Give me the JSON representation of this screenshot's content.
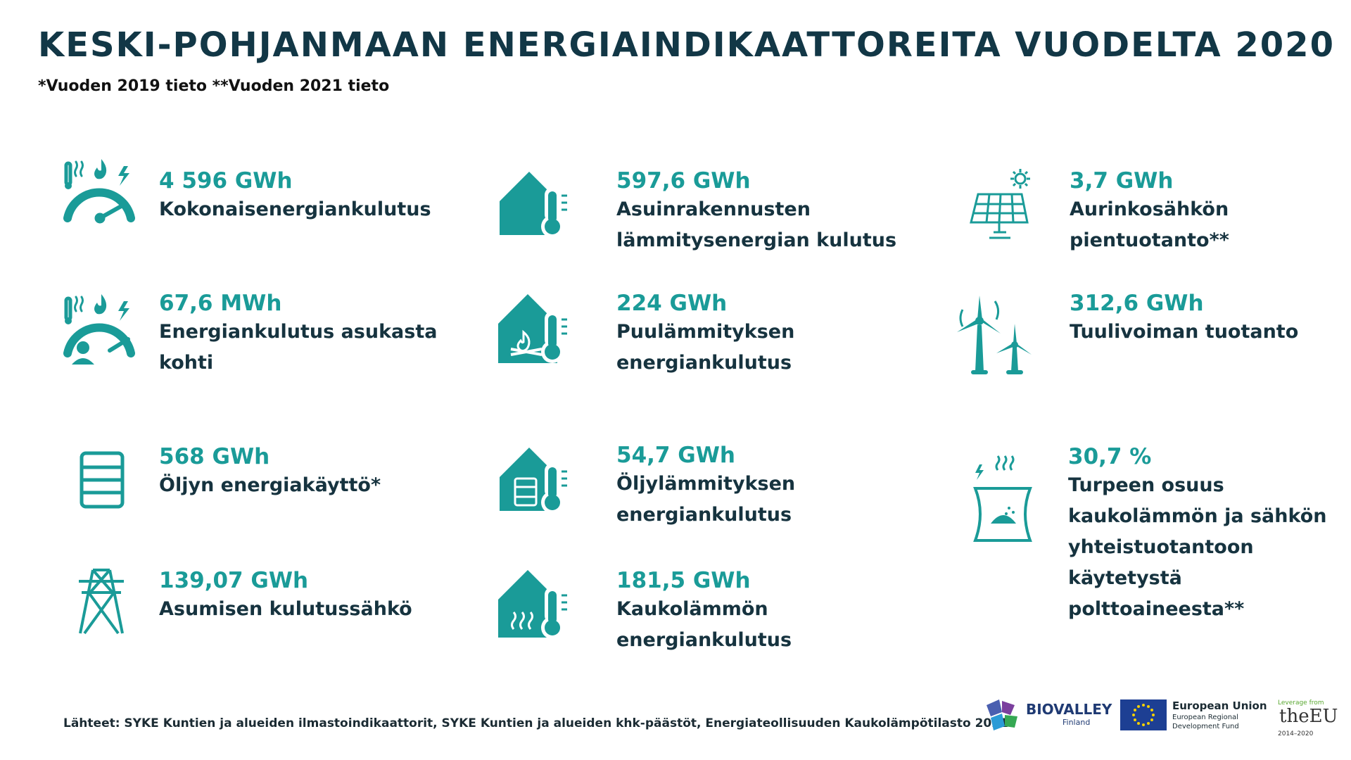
{
  "header": {
    "title": "KESKI-POHJANMAAN ENERGIAINDIKAATTOREITA VUODELTA 2020",
    "note": "*Vuoden 2019 tieto  **Vuoden 2021 tieto"
  },
  "colors": {
    "accent": "#1a9b98",
    "text": "#16333f"
  },
  "stats": [
    {
      "icon": "gauge-heat-electricity-icon",
      "value": "4 596 GWh",
      "label": "Kokonaisenergiankulutus"
    },
    {
      "icon": "gauge-person-icon",
      "value": "67,6 MWh",
      "label": "Energiankulutus asukasta\nkohti"
    },
    {
      "icon": "oil-barrel-icon",
      "value": "568 GWh",
      "label": "Öljyn energiakäyttö*"
    },
    {
      "icon": "power-pylon-icon",
      "value": "139,07 GWh",
      "label": "Asumisen kulutussähkö"
    },
    {
      "icon": "house-thermometer-icon",
      "value": "597,6 GWh",
      "label": "Asuinrakennusten\nlämmitysenergian kulutus"
    },
    {
      "icon": "house-fire-thermometer-icon",
      "value": "224 GWh",
      "label": "Puulämmityksen\nenergiankulutus"
    },
    {
      "icon": "house-barrel-thermometer-icon",
      "value": "54,7 GWh",
      "label": "Öljylämmityksen\nenergiankulutus"
    },
    {
      "icon": "house-heat-thermometer-icon",
      "value": "181,5 GWh",
      "label": "Kaukolämmön\nenergiankulutus"
    },
    {
      "icon": "solar-panel-icon",
      "value": "3,7 GWh",
      "label": "Aurinkosähkön\npientuotanto**"
    },
    {
      "icon": "wind-turbines-icon",
      "value": "312,6 GWh",
      "label": "Tuulivoiman tuotanto"
    },
    {
      "icon": "power-plant-peat-icon",
      "value": "30,7 %",
      "label": "Turpeen osuus\nkaukolämmön ja sähkön\nyhteistuotantoon\nkäytetystä\npolttoaineesta**"
    }
  ],
  "footer": {
    "sources": "Lähteet: SYKE Kuntien ja alueiden ilmastoindikaattorit, SYKE Kuntien ja alueiden khk-päästöt, Energiateollisuuden Kaukolämpötilasto 2021",
    "biovalley": "BIOVALLEY",
    "biovalley_sub": "Finland",
    "eu_title": "European Union",
    "eu_sub1": "European Regional",
    "eu_sub2": "Development Fund",
    "leverage_top": "Leverage from",
    "leverage_main": "theEU",
    "leverage_years": "2014–2020"
  }
}
